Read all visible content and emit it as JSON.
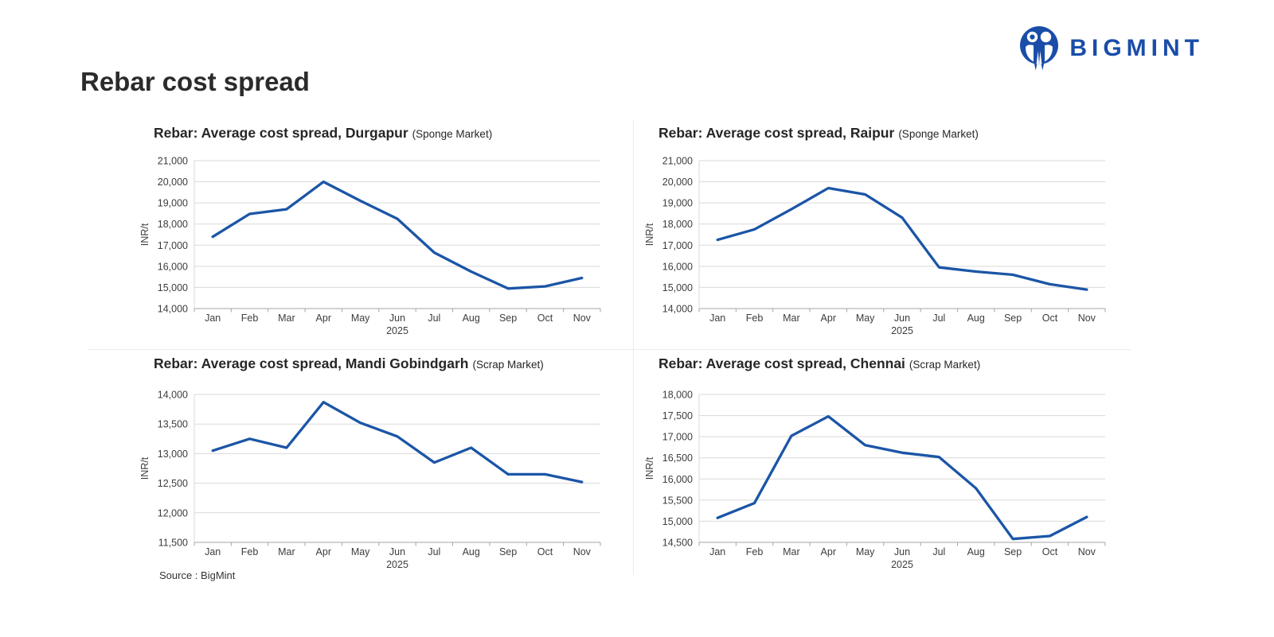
{
  "header": {
    "brand": "BIGMINT",
    "title": "Rebar cost spread"
  },
  "footer": {
    "source": "Source : BigMint"
  },
  "colors": {
    "line": "#1b55a6",
    "brand_blue": "#1a4da8",
    "grid": "#d9d9d9",
    "axis": "#a6a6a6",
    "tick_text": "#3d3d3d",
    "title_text": "#262626"
  },
  "charts": [
    {
      "title": "Rebar: Average cost spread, Durgapur",
      "subtitle": "(Sponge Market)",
      "chart_data": {
        "type": "line",
        "x": [
          "Jan",
          "Feb",
          "Mar",
          "Apr",
          "May",
          "Jun",
          "Jul",
          "Aug",
          "Sep",
          "Oct",
          "Nov"
        ],
        "year_label": "2025",
        "ylabel": "INR/t",
        "ylim": [
          14000,
          21000
        ],
        "ytick_step": 1000,
        "values": [
          17400,
          18480,
          18700,
          20000,
          19100,
          18250,
          16650,
          15750,
          14950,
          15050,
          15450
        ],
        "grid": true,
        "legend": "none"
      }
    },
    {
      "title": "Rebar: Average cost spread, Raipur",
      "subtitle": "(Sponge Market)",
      "chart_data": {
        "type": "line",
        "x": [
          "Jan",
          "Feb",
          "Mar",
          "Apr",
          "May",
          "Jun",
          "Jul",
          "Aug",
          "Sep",
          "Oct",
          "Nov"
        ],
        "year_label": "2025",
        "ylabel": "INR/t",
        "ylim": [
          14000,
          21000
        ],
        "ytick_step": 1000,
        "values": [
          17250,
          17750,
          18700,
          19700,
          19400,
          18300,
          15950,
          15750,
          15600,
          15150,
          14900
        ],
        "grid": true,
        "legend": "none"
      }
    },
    {
      "title": "Rebar: Average cost spread, Mandi Gobindgarh",
      "subtitle": "(Scrap Market)",
      "chart_data": {
        "type": "line",
        "x": [
          "Jan",
          "Feb",
          "Mar",
          "Apr",
          "May",
          "Jun",
          "Jul",
          "Aug",
          "Sep",
          "Oct",
          "Nov"
        ],
        "year_label": "2025",
        "ylabel": "INR/t",
        "ylim": [
          11500,
          14000
        ],
        "ytick_step": 500,
        "values": [
          13050,
          13250,
          13100,
          13870,
          13520,
          13290,
          12850,
          13100,
          12650,
          12650,
          12520
        ],
        "grid": true,
        "legend": "none"
      }
    },
    {
      "title": "Rebar: Average cost spread, Chennai",
      "subtitle": "(Scrap Market)",
      "chart_data": {
        "type": "line",
        "x": [
          "Jan",
          "Feb",
          "Mar",
          "Apr",
          "May",
          "Jun",
          "Jul",
          "Aug",
          "Sep",
          "Oct",
          "Nov"
        ],
        "year_label": "2025",
        "ylabel": "INR/t",
        "ylim": [
          14500,
          18000
        ],
        "ytick_step": 500,
        "values": [
          15080,
          15430,
          17020,
          17480,
          16800,
          16620,
          16520,
          15780,
          14580,
          14650,
          15100
        ],
        "grid": true,
        "legend": "none"
      }
    }
  ]
}
